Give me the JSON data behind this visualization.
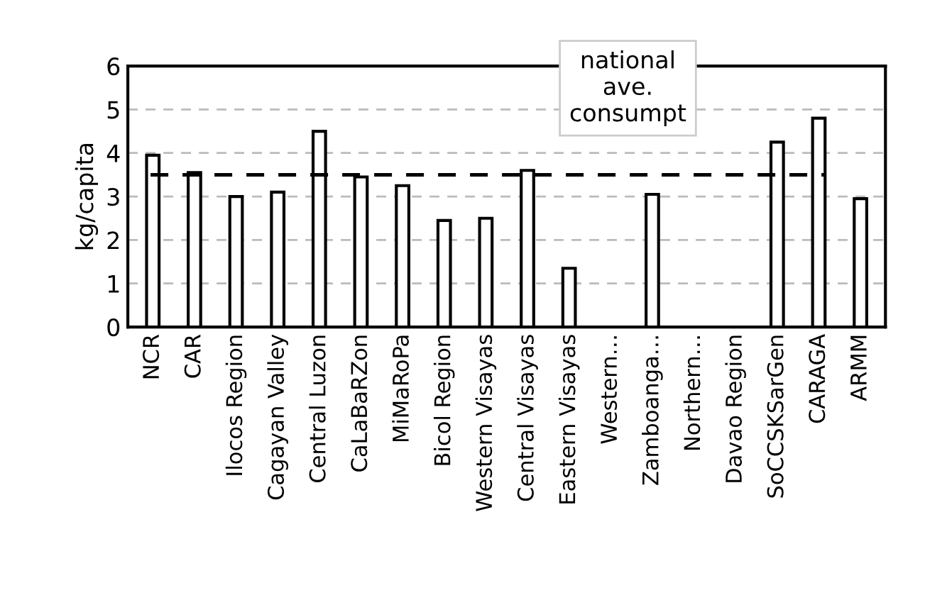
{
  "chart_data": {
    "type": "bar",
    "ylabel": "kg/capita",
    "categories": [
      "NCR",
      "CAR",
      "Ilocos Region",
      "Cagayan Valley",
      "Central Luzon",
      "CaLaBaRZon",
      "MiMaRoPa",
      "Bicol Region",
      "Western Visayas",
      "Central Visayas",
      "Eastern Visayas",
      "Western…",
      "Zamboanga…",
      "Northern…",
      "Davao Region",
      "SoCCSKSarGen",
      "CARAGA",
      "ARMM"
    ],
    "values": [
      3.95,
      3.55,
      3.0,
      3.1,
      4.5,
      3.45,
      3.25,
      2.45,
      2.5,
      3.6,
      1.35,
      null,
      3.05,
      null,
      null,
      4.25,
      4.8,
      2.95
    ],
    "color": "#ffffff",
    "ylim": [
      0,
      6
    ],
    "yticks": [
      0,
      1,
      2,
      3,
      4,
      5,
      6
    ],
    "grid": "y",
    "ref_lines": [
      {
        "axis": "y",
        "value": 3.5,
        "label": "national\nave.\nconsumpt",
        "color": "#000000",
        "line_style": "dashed"
      }
    ]
  }
}
